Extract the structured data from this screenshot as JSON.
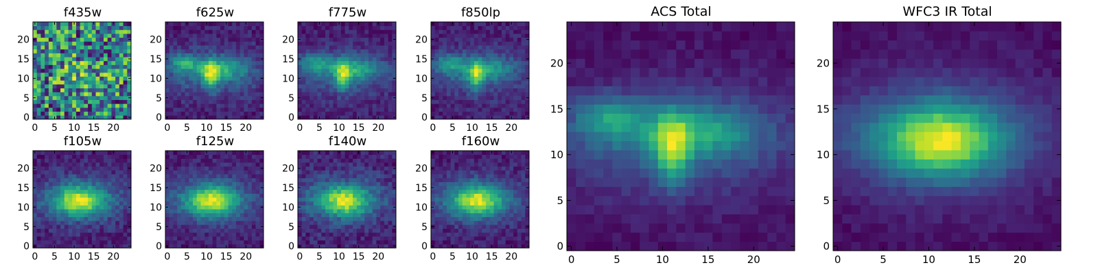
{
  "figure": {
    "colormap": "viridis",
    "colormap_stops": [
      "#440154",
      "#482878",
      "#3e4989",
      "#31688e",
      "#26828e",
      "#1f9e89",
      "#35b779",
      "#6ece58",
      "#b5de2b",
      "#fde725"
    ]
  },
  "chart_data": [
    {
      "type": "heatmap",
      "title": "f435w",
      "grid_size": 25,
      "xlim": [
        -0.5,
        24.5
      ],
      "ylim": [
        -0.5,
        24.5
      ],
      "xticks": [
        0,
        5,
        10,
        15,
        20
      ],
      "yticks": [
        0,
        5,
        10,
        15,
        20
      ],
      "source": {
        "model": "noisy",
        "noise": 0.22,
        "base": 0.72,
        "seed": 11
      }
    },
    {
      "type": "heatmap",
      "title": "f625w",
      "grid_size": 25,
      "xlim": [
        -0.5,
        24.5
      ],
      "ylim": [
        -0.5,
        24.5
      ],
      "xticks": [
        0,
        5,
        10,
        15,
        20
      ],
      "yticks": [
        0,
        5,
        10,
        15,
        20
      ],
      "source": {
        "model": "acs",
        "noise": 0.16,
        "seed": 21
      }
    },
    {
      "type": "heatmap",
      "title": "f775w",
      "grid_size": 25,
      "xlim": [
        -0.5,
        24.5
      ],
      "ylim": [
        -0.5,
        24.5
      ],
      "xticks": [
        0,
        5,
        10,
        15,
        20
      ],
      "yticks": [
        0,
        5,
        10,
        15,
        20
      ],
      "source": {
        "model": "acs",
        "noise": 0.15,
        "seed": 31
      }
    },
    {
      "type": "heatmap",
      "title": "f850lp",
      "grid_size": 25,
      "xlim": [
        -0.5,
        24.5
      ],
      "ylim": [
        -0.5,
        24.5
      ],
      "xticks": [
        0,
        5,
        10,
        15,
        20
      ],
      "yticks": [
        0,
        5,
        10,
        15,
        20
      ],
      "source": {
        "model": "acs",
        "noise": 0.16,
        "seed": 41
      }
    },
    {
      "type": "heatmap",
      "title": "f105w",
      "grid_size": 25,
      "xlim": [
        -0.5,
        24.5
      ],
      "ylim": [
        -0.5,
        24.5
      ],
      "xticks": [
        0,
        5,
        10,
        15,
        20
      ],
      "yticks": [
        0,
        5,
        10,
        15,
        20
      ],
      "source": {
        "model": "ir",
        "noise": 0.15,
        "seed": 51
      }
    },
    {
      "type": "heatmap",
      "title": "f125w",
      "grid_size": 25,
      "xlim": [
        -0.5,
        24.5
      ],
      "ylim": [
        -0.5,
        24.5
      ],
      "xticks": [
        0,
        5,
        10,
        15,
        20
      ],
      "yticks": [
        0,
        5,
        10,
        15,
        20
      ],
      "source": {
        "model": "ir",
        "noise": 0.13,
        "seed": 61
      }
    },
    {
      "type": "heatmap",
      "title": "f140w",
      "grid_size": 25,
      "xlim": [
        -0.5,
        24.5
      ],
      "ylim": [
        -0.5,
        24.5
      ],
      "xticks": [
        0,
        5,
        10,
        15,
        20
      ],
      "yticks": [
        0,
        5,
        10,
        15,
        20
      ],
      "source": {
        "model": "ir",
        "noise": 0.17,
        "seed": 71
      }
    },
    {
      "type": "heatmap",
      "title": "f160w",
      "grid_size": 25,
      "xlim": [
        -0.5,
        24.5
      ],
      "ylim": [
        -0.5,
        24.5
      ],
      "xticks": [
        0,
        5,
        10,
        15,
        20
      ],
      "yticks": [
        0,
        5,
        10,
        15,
        20
      ],
      "source": {
        "model": "ir",
        "noise": 0.14,
        "seed": 81
      }
    },
    {
      "type": "heatmap",
      "title": "ACS Total",
      "grid_size": 25,
      "xlim": [
        -0.5,
        24.5
      ],
      "ylim": [
        -0.5,
        24.5
      ],
      "xticks": [
        0,
        5,
        10,
        15,
        20
      ],
      "yticks": [
        0,
        5,
        10,
        15,
        20
      ],
      "source": {
        "model": "acs",
        "noise": 0.08,
        "seed": 91
      }
    },
    {
      "type": "heatmap",
      "title": "WFC3 IR Total",
      "grid_size": 25,
      "xlim": [
        -0.5,
        24.5
      ],
      "ylim": [
        -0.5,
        24.5
      ],
      "xticks": [
        0,
        5,
        10,
        15,
        20
      ],
      "yticks": [
        0,
        5,
        10,
        15,
        20
      ],
      "source": {
        "model": "ir",
        "noise": 0.06,
        "seed": 101
      }
    }
  ]
}
